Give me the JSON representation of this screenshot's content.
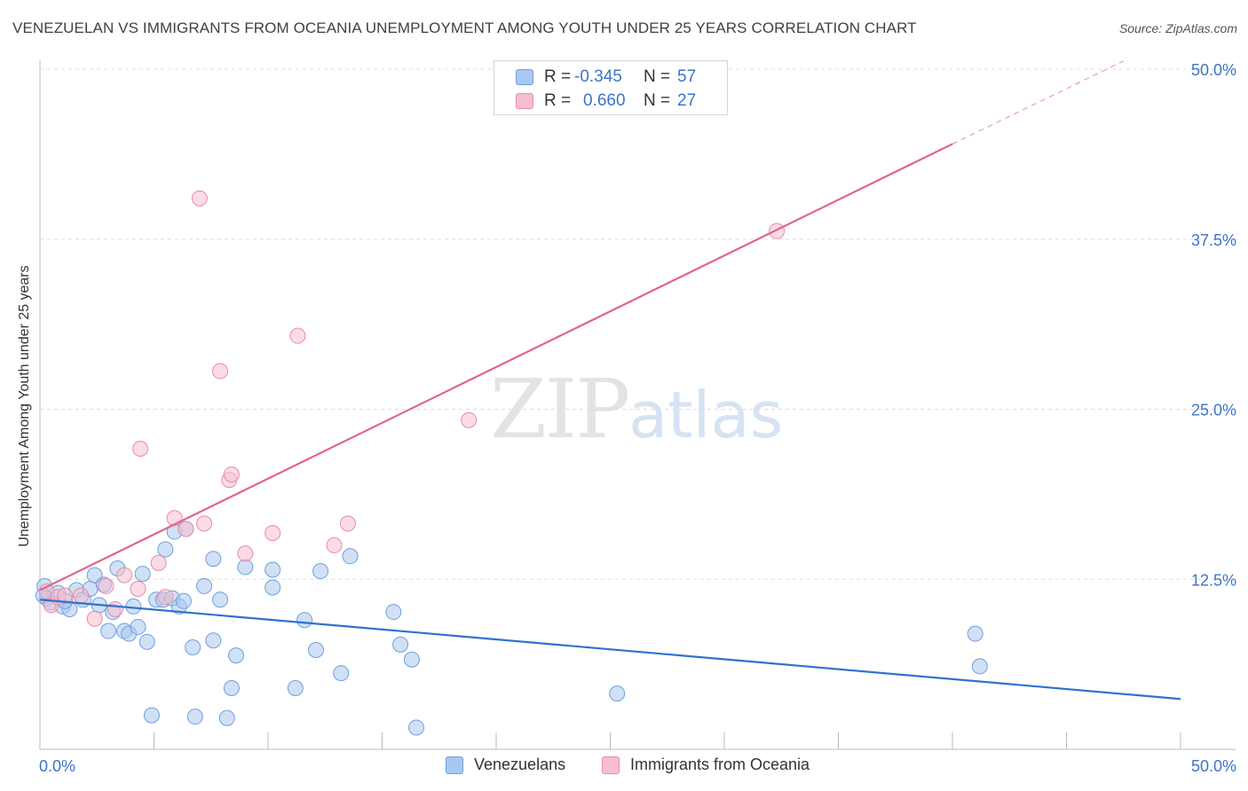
{
  "header": {
    "title": "VENEZUELAN VS IMMIGRANTS FROM OCEANIA UNEMPLOYMENT AMONG YOUTH UNDER 25 YEARS CORRELATION CHART",
    "source": "Source: ZipAtlas.com"
  },
  "watermark": {
    "zip": "ZIP",
    "atlas": "atlas"
  },
  "legend_top": {
    "rows": [
      {
        "r_label": "R =",
        "r_value": "-0.345",
        "n_label": "N =",
        "n_value": "57"
      },
      {
        "r_label": "R =",
        "r_value": "0.660",
        "n_label": "N =",
        "n_value": "27"
      }
    ]
  },
  "legend_bottom": {
    "series_a": "Venezuelans",
    "series_b": "Immigrants from Oceania"
  },
  "colors": {
    "blue_fill": "#a9c8ef",
    "blue_stroke": "#6f9fdc",
    "blue_line": "#2f72cc",
    "pink_fill": "#f5bfd0",
    "pink_stroke": "#e98aa8",
    "pink_line": "#e0658e",
    "grid": "#dddddd",
    "tick_label": "#3d74c5"
  },
  "chart_data": {
    "type": "scatter",
    "title": "VENEZUELAN VS IMMIGRANTS FROM OCEANIA UNEMPLOYMENT AMONG YOUTH UNDER 25 YEARS CORRELATION CHART",
    "ylabel": "Unemployment Among Youth under 25 years",
    "xlabel": "",
    "xlim": [
      0,
      50
    ],
    "ylim": [
      0,
      50
    ],
    "x_tick_labels": [
      "0.0%",
      "50.0%"
    ],
    "y_tick_labels": [
      "12.5%",
      "25.0%",
      "37.5%",
      "50.0%"
    ],
    "y_ticks": [
      12.5,
      25.0,
      37.5,
      50.0
    ],
    "x_gridline_values": [
      5,
      10,
      15,
      20,
      25,
      30,
      35,
      40,
      45,
      50
    ],
    "grid": true,
    "legend": "bottom-center",
    "series": [
      {
        "name": "Venezuelans",
        "r": -0.345,
        "n": 57,
        "trend": {
          "x": [
            0,
            50
          ],
          "y": [
            11.0,
            3.7
          ]
        },
        "points": [
          [
            0.2,
            12.0
          ],
          [
            0.3,
            11.1
          ],
          [
            0.5,
            10.8
          ],
          [
            0.8,
            11.5
          ],
          [
            1.0,
            10.5
          ],
          [
            1.3,
            10.3
          ],
          [
            1.6,
            11.7
          ],
          [
            1.9,
            11.0
          ],
          [
            2.2,
            11.8
          ],
          [
            2.4,
            12.8
          ],
          [
            2.6,
            10.6
          ],
          [
            2.8,
            12.1
          ],
          [
            3.0,
            8.7
          ],
          [
            3.2,
            10.1
          ],
          [
            3.4,
            13.3
          ],
          [
            3.7,
            8.7
          ],
          [
            3.9,
            8.5
          ],
          [
            4.1,
            10.5
          ],
          [
            4.3,
            9.0
          ],
          [
            4.5,
            12.9
          ],
          [
            4.7,
            7.9
          ],
          [
            4.9,
            2.5
          ],
          [
            5.1,
            11.0
          ],
          [
            5.4,
            11.0
          ],
          [
            5.5,
            14.7
          ],
          [
            5.8,
            11.1
          ],
          [
            5.9,
            16.0
          ],
          [
            6.1,
            10.5
          ],
          [
            6.4,
            16.2
          ],
          [
            6.3,
            10.9
          ],
          [
            6.7,
            7.5
          ],
          [
            6.8,
            2.4
          ],
          [
            7.2,
            12.0
          ],
          [
            7.6,
            8.0
          ],
          [
            7.6,
            14.0
          ],
          [
            7.9,
            11.0
          ],
          [
            8.2,
            2.3
          ],
          [
            8.4,
            4.5
          ],
          [
            8.6,
            6.9
          ],
          [
            9.0,
            13.4
          ],
          [
            10.2,
            13.2
          ],
          [
            10.2,
            11.9
          ],
          [
            11.2,
            4.5
          ],
          [
            11.6,
            9.5
          ],
          [
            12.1,
            7.3
          ],
          [
            12.3,
            13.1
          ],
          [
            13.2,
            5.6
          ],
          [
            13.6,
            14.2
          ],
          [
            15.5,
            10.1
          ],
          [
            15.8,
            7.7
          ],
          [
            16.3,
            6.6
          ],
          [
            16.5,
            1.6
          ],
          [
            25.3,
            4.1
          ],
          [
            41.0,
            8.5
          ],
          [
            41.2,
            6.1
          ],
          [
            0.15,
            11.3
          ],
          [
            1.1,
            10.9
          ]
        ]
      },
      {
        "name": "Immigrants from Oceania",
        "r": 0.66,
        "n": 27,
        "trend": {
          "x": [
            0,
            40
          ],
          "y": [
            11.7,
            44.5
          ],
          "dashed_to": {
            "x": 47.5,
            "y": 50.6
          }
        },
        "points": [
          [
            0.3,
            11.6
          ],
          [
            0.5,
            10.6
          ],
          [
            0.8,
            11.2
          ],
          [
            1.1,
            11.3
          ],
          [
            1.8,
            11.3
          ],
          [
            2.4,
            9.6
          ],
          [
            2.9,
            12.0
          ],
          [
            3.3,
            10.3
          ],
          [
            3.7,
            12.8
          ],
          [
            4.3,
            11.8
          ],
          [
            4.4,
            22.1
          ],
          [
            5.2,
            13.7
          ],
          [
            5.5,
            11.2
          ],
          [
            5.9,
            17.0
          ],
          [
            6.4,
            16.2
          ],
          [
            7.0,
            40.5
          ],
          [
            7.2,
            16.6
          ],
          [
            7.9,
            27.8
          ],
          [
            8.3,
            19.8
          ],
          [
            8.4,
            20.2
          ],
          [
            9.0,
            14.4
          ],
          [
            10.2,
            15.9
          ],
          [
            11.3,
            30.4
          ],
          [
            12.9,
            15.0
          ],
          [
            13.5,
            16.6
          ],
          [
            18.8,
            24.2
          ],
          [
            32.3,
            38.1
          ]
        ]
      }
    ]
  }
}
